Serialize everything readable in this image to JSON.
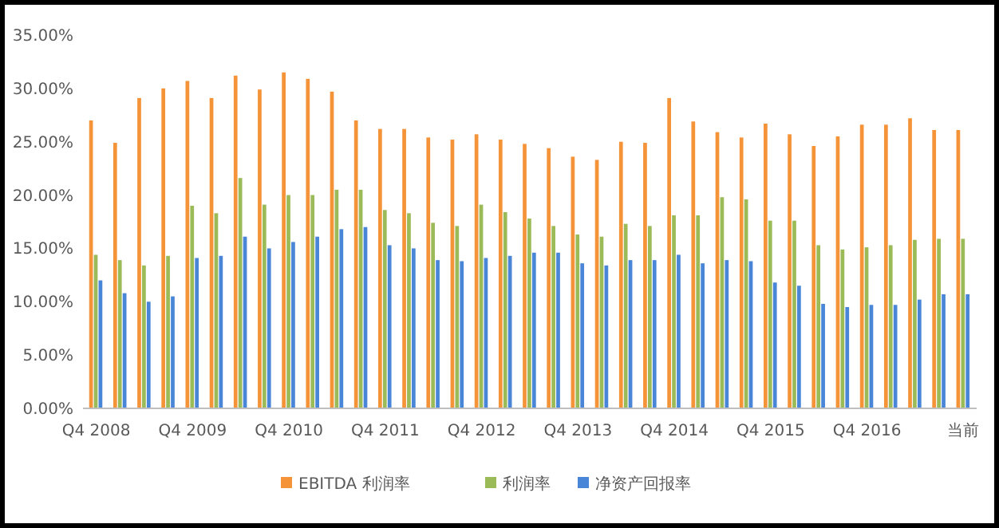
{
  "chart_data": {
    "type": "bar",
    "categories": [
      "Q4 2008",
      null,
      null,
      null,
      "Q4 2009",
      null,
      null,
      null,
      "Q4 2010",
      null,
      null,
      null,
      "Q4 2011",
      null,
      null,
      null,
      "Q4 2012",
      null,
      null,
      null,
      "Q4 2013",
      null,
      null,
      null,
      "Q4 2014",
      null,
      null,
      null,
      "Q4 2015",
      null,
      null,
      null,
      "Q4 2016",
      null,
      null,
      null,
      "当前"
    ],
    "series": [
      {
        "name": "EBITDA 利润率",
        "color": "#f59338",
        "values": [
          27.0,
          24.9,
          29.1,
          30.0,
          30.7,
          29.1,
          31.2,
          29.9,
          31.5,
          30.9,
          29.7,
          27.0,
          26.2,
          26.2,
          25.4,
          25.2,
          25.7,
          25.2,
          24.8,
          24.4,
          23.6,
          23.3,
          25.0,
          24.9,
          29.1,
          26.9,
          25.9,
          25.4,
          26.7,
          25.7,
          24.6,
          25.5,
          26.6,
          26.6,
          27.2,
          26.1,
          26.1
        ]
      },
      {
        "name": "利润率",
        "color": "#9bbb59",
        "values": [
          14.4,
          13.9,
          13.4,
          14.3,
          19.0,
          18.3,
          21.6,
          19.1,
          20.0,
          20.0,
          20.5,
          20.5,
          18.6,
          18.3,
          17.4,
          17.1,
          19.1,
          18.4,
          17.8,
          17.1,
          16.3,
          16.1,
          17.3,
          17.1,
          18.1,
          18.1,
          19.8,
          19.6,
          17.6,
          17.6,
          15.3,
          14.9,
          15.1,
          15.3,
          15.8,
          15.9,
          15.9
        ]
      },
      {
        "name": "净资产回报率",
        "color": "#4a86d8",
        "values": [
          12.0,
          10.8,
          10.0,
          10.5,
          14.1,
          14.3,
          16.1,
          15.0,
          15.6,
          16.1,
          16.8,
          17.0,
          15.3,
          15.0,
          13.9,
          13.8,
          14.1,
          14.3,
          14.6,
          14.6,
          13.6,
          13.4,
          13.9,
          13.9,
          14.4,
          13.6,
          13.9,
          13.8,
          11.8,
          11.5,
          9.8,
          9.5,
          9.7,
          9.7,
          10.2,
          10.7,
          10.7
        ]
      }
    ],
    "ylim": [
      0,
      35
    ],
    "yticks": [
      {
        "value": 0,
        "label": "0.00%"
      },
      {
        "value": 5,
        "label": "5.00%"
      },
      {
        "value": 10,
        "label": "10.00%"
      },
      {
        "value": 15,
        "label": "15.00%"
      },
      {
        "value": 20,
        "label": "20.00%"
      },
      {
        "value": 25,
        "label": "25.00%"
      },
      {
        "value": 30,
        "label": "30.00%"
      },
      {
        "value": 35,
        "label": "35.00%"
      }
    ],
    "legend": "bottom"
  }
}
